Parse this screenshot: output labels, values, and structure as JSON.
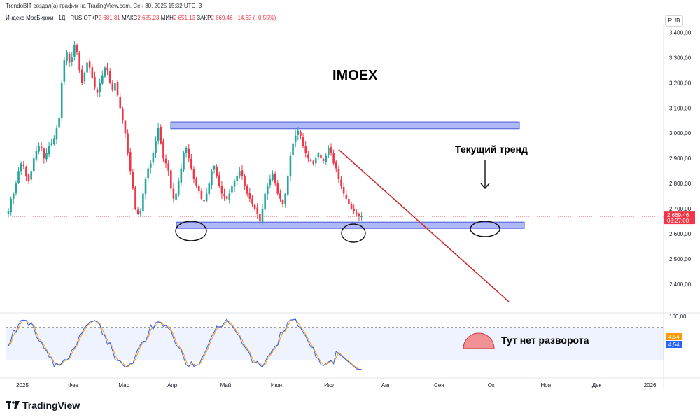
{
  "header": {
    "credit": "TrendoBIT создал(а) график на TradingView.com, Сен 30, 2025 15:32 UTC+3",
    "symbol": "Индекс МосБиржи · 1Д · RUS",
    "ohlc": [
      {
        "label": "ОТКР",
        "value": "2 681,81"
      },
      {
        "label": "МАКС",
        "value": "2 685,23"
      },
      {
        "label": "МИН",
        "value": "2 651,13"
      },
      {
        "label": "ЗАКР",
        "value": "2 669,46 −14,63 (−0,55%)"
      }
    ],
    "currency": "RUB"
  },
  "brand": {
    "name": "TradingView"
  },
  "colors": {
    "up": "#26a69a",
    "down": "#f23645",
    "zone": "#6e7ff3",
    "trend": "#c9302c",
    "stoch_k": "#2962ff",
    "stoch_d": "#ff9800"
  },
  "chart_data": {
    "type": "candlestick",
    "title": "IMOEX",
    "y_ticks": [
      "3 400,00",
      "3 300,00",
      "3 200,00",
      "3 100,00",
      "3 000,00",
      "2 900,00",
      "2 800,00",
      "2 700,00",
      "2 600,00",
      "2 500,00",
      "2 400,00"
    ],
    "ylim": [
      2300,
      3440
    ],
    "x_ticks": [
      "2025",
      "Фев",
      "Мар",
      "Апр",
      "Май",
      "Июн",
      "Июл",
      "Авг",
      "Сен",
      "Окт",
      "Ноя",
      "Дек",
      "2026"
    ],
    "last_price": {
      "value": "2 669,46",
      "countdown": "03:27:00",
      "level": 2669.46
    },
    "close_series": [
      2690,
      2740,
      2760,
      2800,
      2850,
      2880,
      2870,
      2830,
      2810,
      2850,
      2900,
      2930,
      2950,
      2940,
      2900,
      2920,
      2950,
      2960,
      2980,
      3020,
      3060,
      3200,
      3290,
      3320,
      3280,
      3300,
      3350,
      3320,
      3250,
      3200,
      3240,
      3280,
      3260,
      3220,
      3180,
      3160,
      3200,
      3230,
      3260,
      3250,
      3200,
      3170,
      3200,
      3150,
      3100,
      3050,
      3000,
      2920,
      2850,
      2780,
      2700,
      2680,
      2690,
      2760,
      2820,
      2860,
      2880,
      2920,
      2970,
      3020,
      2960,
      2900,
      2880,
      2850,
      2780,
      2740,
      2760,
      2810,
      2860,
      2920,
      2940,
      2900,
      2860,
      2820,
      2790,
      2770,
      2740,
      2730,
      2760,
      2800,
      2850,
      2870,
      2830,
      2790,
      2760,
      2750,
      2740,
      2760,
      2790,
      2810,
      2830,
      2850,
      2830,
      2790,
      2760,
      2740,
      2720,
      2700,
      2680,
      2650,
      2700,
      2760,
      2790,
      2820,
      2840,
      2800,
      2760,
      2740,
      2720,
      2760,
      2830,
      2910,
      2960,
      2990,
      3010,
      2990,
      2950,
      2920,
      2900,
      2890,
      2880,
      2900,
      2920,
      2900,
      2890,
      2910,
      2940,
      2920,
      2880,
      2860,
      2820,
      2790,
      2760,
      2740,
      2720,
      2700,
      2690,
      2680,
      2670,
      2669.46
    ],
    "zones": [
      {
        "name": "resistance",
        "top": 3045,
        "bottom": 3018
      },
      {
        "name": "support",
        "top": 2647,
        "bottom": 2622
      }
    ],
    "trendline": [
      {
        "x_index": 130,
        "y": 2935
      },
      {
        "x_index": 197,
        "y": 2330
      }
    ],
    "annotations": {
      "trend": "Текущий тренд",
      "oscillator": "Тут нет разворота"
    },
    "oscillator": {
      "name": "Stochastic",
      "upper": "100,00",
      "levels": [
        80,
        20
      ],
      "k_value": "4,54",
      "d_value": "4,54"
    }
  }
}
